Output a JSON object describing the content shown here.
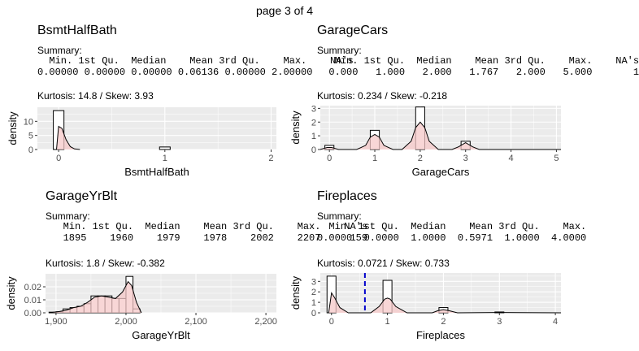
{
  "page_title": "page 3 of 4",
  "chart_data": [
    {
      "type": "histogram",
      "title": "BsmtHalfBath",
      "summary_label": "Summary:",
      "stats_header": "  Min. 1st Qu.  Median    Mean 3rd Qu.    Max.    NA's",
      "stats_values": "0.00000 0.00000 0.00000 0.06136 0.00000 2.00000",
      "kurtosis_text": "Kurtosis: 14.8  / Skew: 3.93",
      "xlabel": "BsmtHalfBath",
      "ylabel": "density",
      "xlim": [
        -0.2,
        2.05
      ],
      "ylim": [
        0,
        15
      ],
      "xticks": [
        0,
        1,
        2
      ],
      "xtick_labels": [
        "0",
        "1",
        "2"
      ],
      "yticks": [
        0,
        5,
        10
      ],
      "ytick_labels": [
        "0",
        "5",
        "10"
      ],
      "bins": [
        {
          "x0": -0.05,
          "x1": 0.05,
          "y": 13.8
        },
        {
          "x0": 0.95,
          "x1": 1.05,
          "y": 0.9
        }
      ],
      "density": [
        [
          -0.02,
          0.0
        ],
        [
          0.0,
          8.2
        ],
        [
          0.03,
          7.5
        ],
        [
          0.07,
          3.5
        ],
        [
          0.11,
          1.0
        ],
        [
          0.15,
          0.2
        ],
        [
          0.2,
          0.0
        ]
      ],
      "mean_line": null
    },
    {
      "type": "histogram",
      "title": "GarageCars",
      "summary_label": "Summary:",
      "stats_header": "   Min. 1st Qu.  Median    Mean 3rd Qu.    Max.    NA's",
      "stats_values": "  0.000   1.000   2.000   1.767   2.000   5.000       1",
      "kurtosis_text": "Kurtosis: 0.234  / Skew: -0.218",
      "xlabel": "GarageCars",
      "ylabel": "density",
      "xlim": [
        -0.2,
        5.1
      ],
      "ylim": [
        0,
        3.2
      ],
      "xticks": [
        0,
        1,
        2,
        3,
        4,
        5
      ],
      "xtick_labels": [
        "0",
        "1",
        "2",
        "3",
        "4",
        "5"
      ],
      "yticks": [
        0,
        1,
        2,
        3
      ],
      "ytick_labels": [
        "0",
        "1",
        "2",
        "3"
      ],
      "bins": [
        {
          "x0": -0.1,
          "x1": 0.1,
          "y": 0.3
        },
        {
          "x0": 0.9,
          "x1": 1.1,
          "y": 1.4
        },
        {
          "x0": 1.9,
          "x1": 2.1,
          "y": 3.1
        },
        {
          "x0": 2.9,
          "x1": 3.1,
          "y": 0.6
        }
      ],
      "density": [
        [
          -0.2,
          0.0
        ],
        [
          -0.05,
          0.15
        ],
        [
          0.05,
          0.15
        ],
        [
          0.2,
          0.0
        ],
        [
          0.6,
          0.0
        ],
        [
          0.8,
          0.3
        ],
        [
          0.9,
          0.9
        ],
        [
          1.0,
          1.1
        ],
        [
          1.1,
          0.9
        ],
        [
          1.2,
          0.3
        ],
        [
          1.4,
          0.0
        ],
        [
          1.6,
          0.0
        ],
        [
          1.8,
          0.6
        ],
        [
          1.9,
          1.6
        ],
        [
          2.0,
          2.0
        ],
        [
          2.1,
          1.6
        ],
        [
          2.2,
          0.6
        ],
        [
          2.4,
          0.0
        ],
        [
          2.7,
          0.0
        ],
        [
          2.85,
          0.2
        ],
        [
          3.0,
          0.5
        ],
        [
          3.15,
          0.2
        ],
        [
          3.3,
          0.0
        ],
        [
          5.1,
          0.0
        ]
      ],
      "mean_line": null
    },
    {
      "type": "histogram",
      "title": "GarageYrBlt",
      "summary_label": "Summary:",
      "stats_header": "   Min. 1st Qu.  Median    Mean 3rd Qu.    Max.    NA's",
      "stats_values": "   1895    1960    1979    1978    2002    2207     159",
      "kurtosis_text": "Kurtosis: 1.8  / Skew: -0.382",
      "xlabel": "GarageYrBlt",
      "ylabel": "density",
      "xlim": [
        1885,
        2215
      ],
      "ylim": [
        0,
        0.03
      ],
      "xticks": [
        1900,
        2000,
        2100,
        2200
      ],
      "xtick_labels": [
        "1,900",
        "2,000",
        "2,100",
        "2,200"
      ],
      "yticks": [
        0.0,
        0.01,
        0.02
      ],
      "ytick_labels": [
        "0.00",
        "0.01",
        "0.02"
      ],
      "bins": [
        {
          "x0": 1890,
          "x1": 1900,
          "y": 0.0005
        },
        {
          "x0": 1900,
          "x1": 1910,
          "y": 0.0008
        },
        {
          "x0": 1910,
          "x1": 1920,
          "y": 0.003
        },
        {
          "x0": 1920,
          "x1": 1930,
          "y": 0.004
        },
        {
          "x0": 1930,
          "x1": 1940,
          "y": 0.005
        },
        {
          "x0": 1940,
          "x1": 1950,
          "y": 0.007
        },
        {
          "x0": 1950,
          "x1": 1960,
          "y": 0.013
        },
        {
          "x0": 1960,
          "x1": 1970,
          "y": 0.013
        },
        {
          "x0": 1970,
          "x1": 1980,
          "y": 0.013
        },
        {
          "x0": 1980,
          "x1": 1990,
          "y": 0.011
        },
        {
          "x0": 1990,
          "x1": 2000,
          "y": 0.011
        },
        {
          "x0": 2000,
          "x1": 2010,
          "y": 0.028
        },
        {
          "x0": 2010,
          "x1": 2020,
          "y": 0.003
        }
      ],
      "density": [
        [
          1890,
          0.0
        ],
        [
          1905,
          0.001
        ],
        [
          1915,
          0.002
        ],
        [
          1925,
          0.004
        ],
        [
          1935,
          0.005
        ],
        [
          1945,
          0.008
        ],
        [
          1955,
          0.012
        ],
        [
          1965,
          0.013
        ],
        [
          1975,
          0.012
        ],
        [
          1985,
          0.011
        ],
        [
          1995,
          0.016
        ],
        [
          2003,
          0.024
        ],
        [
          2008,
          0.021
        ],
        [
          2015,
          0.008
        ],
        [
          2022,
          0.0
        ]
      ],
      "mean_line": null
    },
    {
      "type": "histogram",
      "title": "Fireplaces",
      "summary_label": "Summary:",
      "stats_header": "  Min. 1st Qu.  Median    Mean 3rd Qu.    Max.",
      "stats_values": "0.0000  0.0000  1.0000  0.5971  1.0000  4.0000",
      "kurtosis_text": "Kurtosis: 0.0721  / Skew: 0.733",
      "xlabel": "Fireplaces",
      "ylabel": "density",
      "xlim": [
        -0.2,
        4.1
      ],
      "ylim": [
        0,
        3.8
      ],
      "xticks": [
        0,
        1,
        2,
        3,
        4
      ],
      "xtick_labels": [
        "0",
        "1",
        "2",
        "3",
        "4"
      ],
      "yticks": [
        0,
        1,
        2,
        3
      ],
      "ytick_labels": [
        "0",
        "1",
        "2",
        "3"
      ],
      "bins": [
        {
          "x0": -0.08,
          "x1": 0.08,
          "y": 3.5
        },
        {
          "x0": 0.92,
          "x1": 1.08,
          "y": 3.1
        },
        {
          "x0": 1.92,
          "x1": 2.08,
          "y": 0.5
        },
        {
          "x0": 2.92,
          "x1": 3.08,
          "y": 0.08
        }
      ],
      "density": [
        [
          -0.05,
          0.0
        ],
        [
          0.0,
          1.9
        ],
        [
          0.05,
          1.5
        ],
        [
          0.15,
          0.5
        ],
        [
          0.3,
          0.0
        ],
        [
          0.7,
          0.0
        ],
        [
          0.85,
          0.6
        ],
        [
          0.95,
          1.3
        ],
        [
          1.0,
          1.4
        ],
        [
          1.05,
          1.3
        ],
        [
          1.15,
          0.6
        ],
        [
          1.35,
          0.0
        ],
        [
          1.8,
          0.0
        ],
        [
          1.9,
          0.2
        ],
        [
          2.0,
          0.3
        ],
        [
          2.1,
          0.2
        ],
        [
          2.25,
          0.0
        ],
        [
          3.0,
          0.03
        ],
        [
          4.1,
          0.0
        ]
      ],
      "mean_line": 0.5971
    }
  ],
  "colors": {
    "panel_bg": "#ebebeb",
    "grid": "#ffffff",
    "bar_fill": "#ffffff",
    "bar_stroke": "#000000",
    "density_fill": "#f6c8c8",
    "density_stroke": "#000000",
    "mean_line": "#0000cc",
    "tick_text": "#4d4d4d"
  }
}
